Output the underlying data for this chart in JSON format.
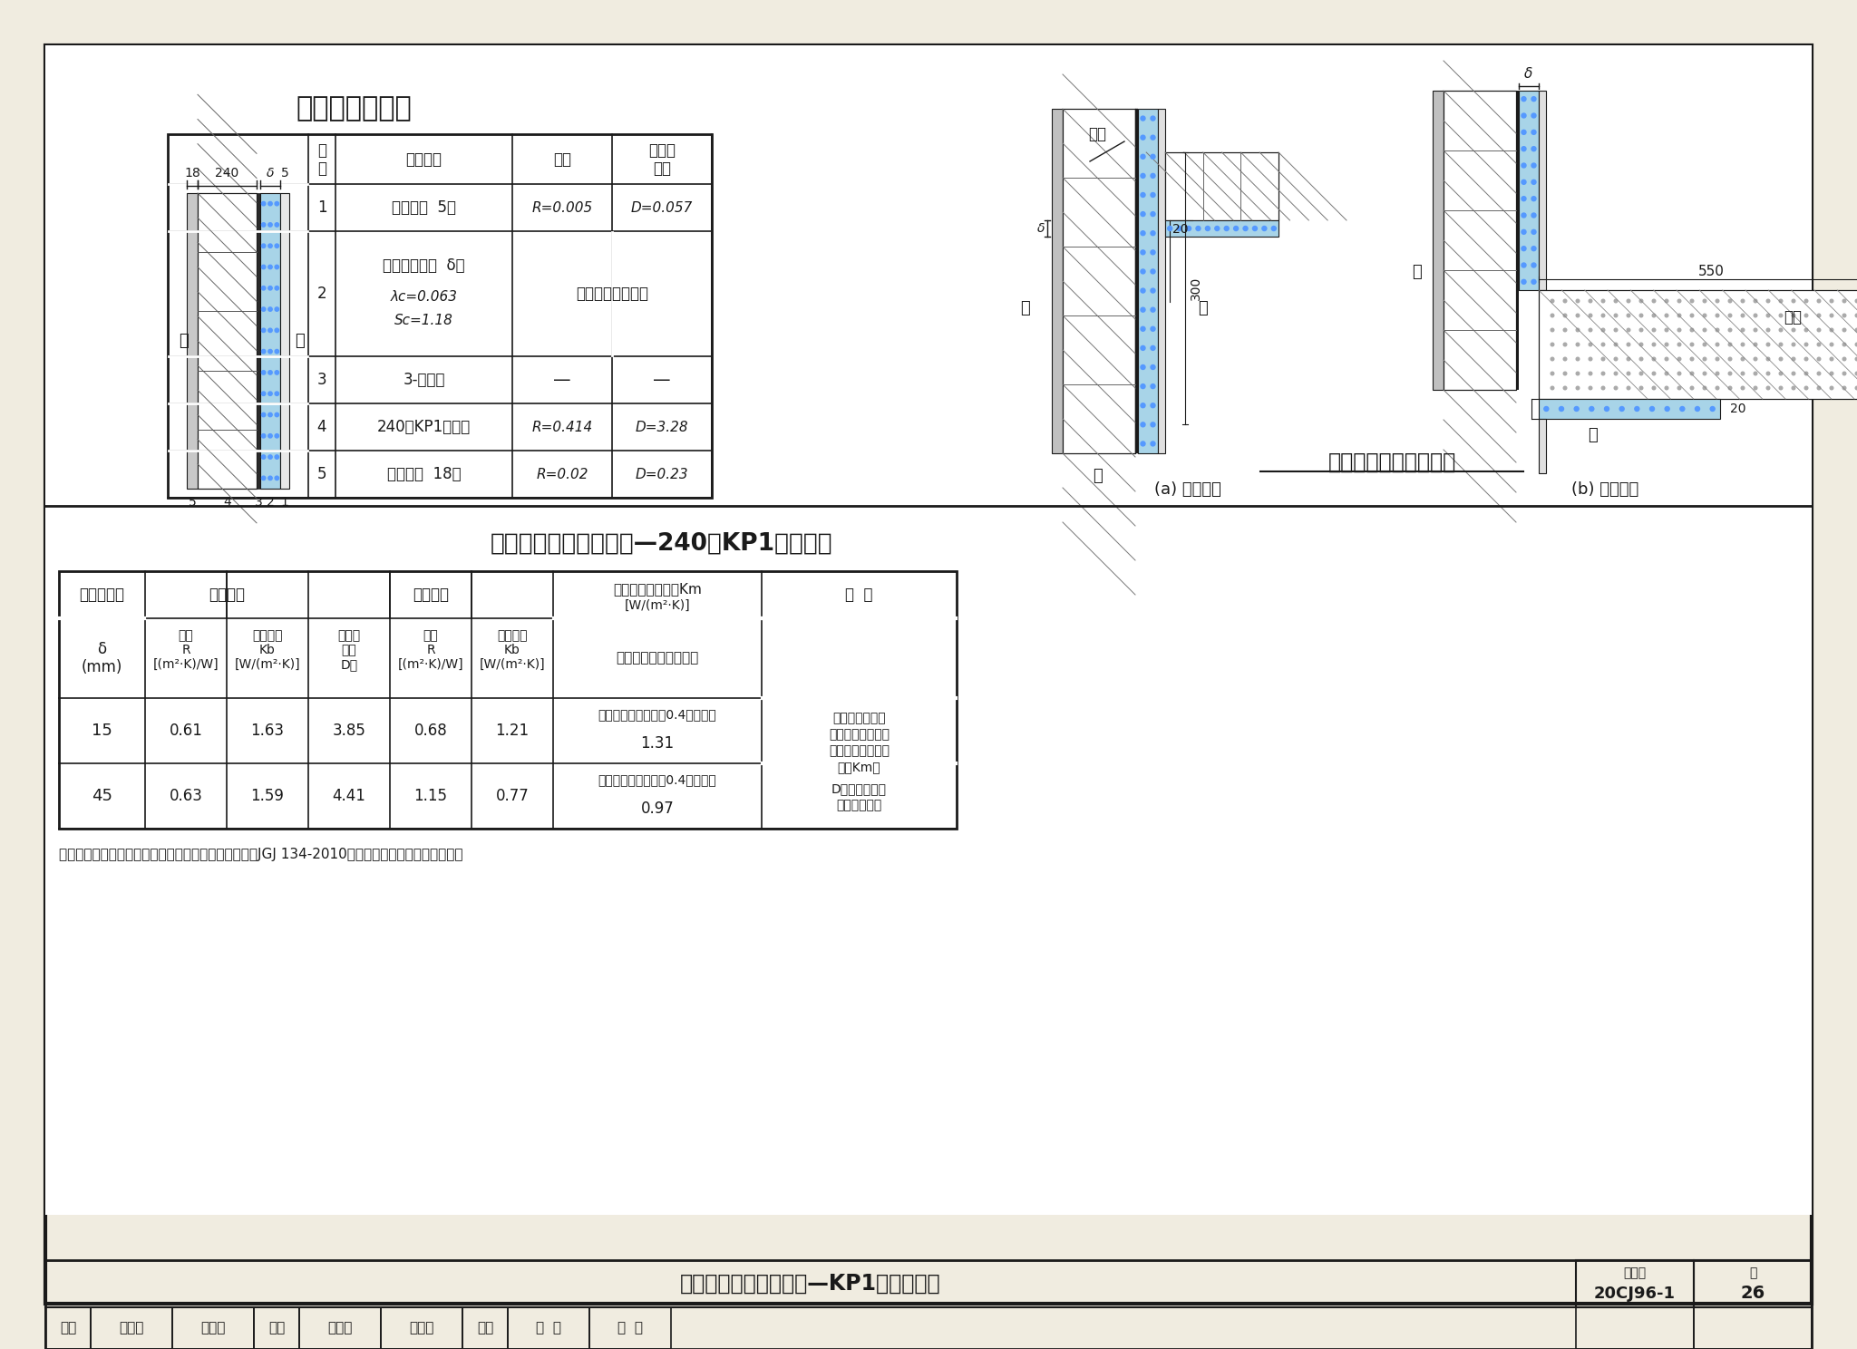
{
  "title1": "外墙内保温做法",
  "title2": "外墙内保温热工性能表—2 40厚KP1多孔砖墙",
  "title2_full": "外墙内保温热工性能表—240厚KP1多孔砖墙",
  "title3": "外墙内保温构造示意图",
  "footer_title": "外墙内保温热工性能表—KP1多孔砖墙体",
  "footer_number": "20CJ96-1",
  "footer_page": "26",
  "bg_color": "#f0ece0",
  "white": "#ffffff",
  "black": "#1a1a1a",
  "blue_fill": "#a8d4e8",
  "note": "注：本表根据《夏热冬冷地区居住建筑节能设计标准》JGJ 134-2010编制，可供夏热冬暖地区参考。"
}
